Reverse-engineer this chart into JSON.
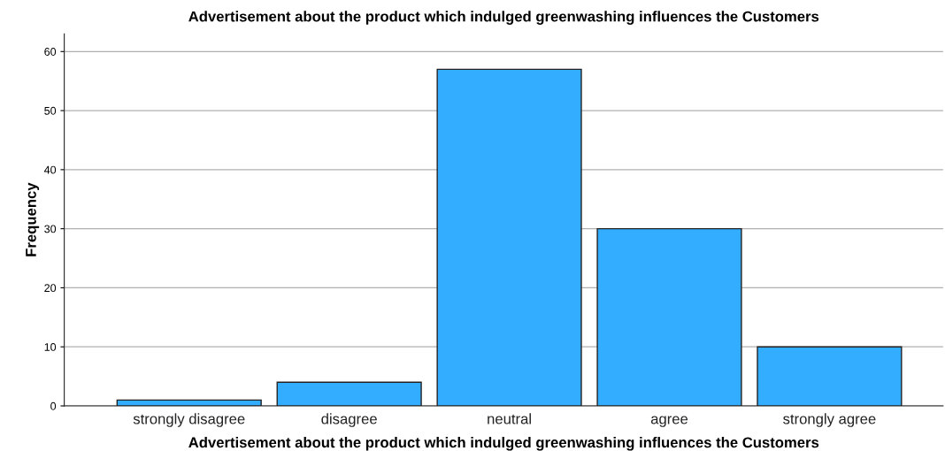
{
  "chart_data": {
    "type": "bar",
    "title": "Advertisement about the product which indulged greenwashing influences the Customers",
    "xlabel": "Advertisement about the product which indulged greenwashing influences the Customers",
    "ylabel": "Frequency",
    "categories": [
      "strongly disagree",
      "disagree",
      "neutral",
      "agree",
      "strongly agree"
    ],
    "values": [
      1,
      4,
      57,
      30,
      10
    ],
    "color": "#33adff",
    "ylim": [
      0,
      63
    ],
    "yticks": [
      0,
      10,
      20,
      30,
      40,
      50,
      60
    ],
    "grid": "y",
    "legend": false
  }
}
